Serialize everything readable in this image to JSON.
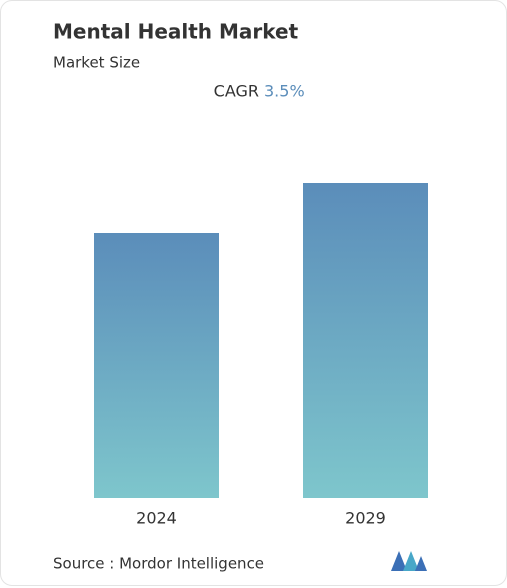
{
  "chart_data": {
    "type": "bar",
    "title": "Mental Health Market",
    "subtitle": "Market Size",
    "cagr_label": "CAGR",
    "cagr": "3.5%",
    "categories": [
      "2024",
      "2029"
    ],
    "values": [
      265,
      315
    ],
    "source": "Source : Mordor Intelligence"
  }
}
